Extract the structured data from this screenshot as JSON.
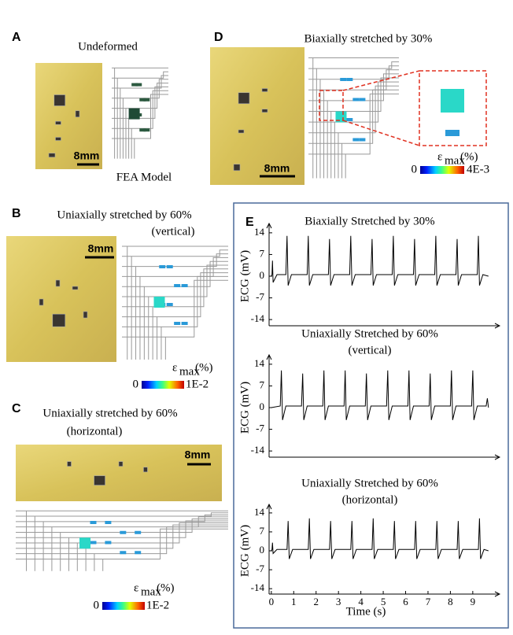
{
  "panels": {
    "A": {
      "label": "A",
      "title": "Undeformed",
      "scale": "8mm",
      "model": "FEA Model"
    },
    "B": {
      "label": "B",
      "title": "Uniaxially stretched by 60%",
      "subtitle": "(vertical)",
      "scale": "8mm",
      "colorbar": {
        "symbol": "ε",
        "subscript": "max",
        "unit": "(%)",
        "min": 0,
        "max": "1E-2"
      }
    },
    "C": {
      "label": "C",
      "title": "Uniaxially stretched by 60%",
      "subtitle": "(horizontal)",
      "scale": "8mm",
      "colorbar": {
        "symbol": "ε",
        "subscript": "max",
        "unit": "(%)",
        "min": 0,
        "max": "1E-2"
      }
    },
    "D": {
      "label": "D",
      "title": "Biaxially stretched by 30%",
      "scale": "8mm",
      "colorbar": {
        "symbol": "ε",
        "subscript": "max",
        "unit": "(%)",
        "min": 0,
        "max": "4E-3"
      }
    },
    "E": {
      "label": "E"
    }
  },
  "chart_data": [
    {
      "type": "line",
      "title": "Biaxially Stretched by 30%",
      "y_label": "ECG (mV)",
      "ylim": [
        -16,
        16
      ],
      "yticks": [
        14,
        7,
        0,
        -7,
        -14
      ],
      "xlim": [
        -0.1,
        10.2
      ],
      "color": "#000000",
      "x": [
        0,
        0.03,
        0.05,
        0.08,
        0.25,
        0.65,
        0.7,
        0.75,
        0.9,
        1.6,
        1.65,
        1.7,
        1.85,
        2.55,
        2.6,
        2.65,
        2.8,
        3.5,
        3.55,
        3.6,
        3.75,
        4.45,
        4.5,
        4.55,
        4.7,
        5.4,
        5.45,
        5.5,
        5.65,
        6.35,
        6.4,
        6.45,
        6.6,
        7.3,
        7.35,
        7.4,
        7.55,
        8.25,
        8.3,
        8.35,
        8.5,
        9.2,
        9.25,
        9.3,
        9.45,
        9.7
      ],
      "values": [
        0,
        0.5,
        5,
        -2,
        0.5,
        0.5,
        13,
        -3,
        0.5,
        0.5,
        13,
        -3,
        0.5,
        0.5,
        12,
        -3,
        0.5,
        0.5,
        13,
        -3,
        0.5,
        0.5,
        12,
        -3,
        0.5,
        0.5,
        13,
        -3,
        0.5,
        0.5,
        12,
        -3,
        0.5,
        0.5,
        13,
        -3,
        0.5,
        0.5,
        12,
        -3,
        0.5,
        0.5,
        13,
        -3,
        0.5,
        0
      ]
    },
    {
      "type": "line",
      "title": "Uniaxially Stretched by 60%",
      "subtitle": "(vertical)",
      "y_label": "ECG (mV)",
      "ylim": [
        -16,
        16
      ],
      "yticks": [
        14,
        7,
        0,
        -7,
        -14
      ],
      "xlim": [
        -0.1,
        10.2
      ],
      "color": "#000000",
      "x": [
        0,
        0.4,
        0.45,
        0.5,
        0.65,
        1.35,
        1.4,
        1.45,
        1.6,
        2.3,
        2.35,
        2.4,
        2.55,
        3.25,
        3.3,
        3.35,
        3.5,
        4.2,
        4.25,
        4.3,
        4.45,
        5.15,
        5.2,
        5.25,
        5.4,
        6.1,
        6.15,
        6.2,
        6.35,
        7.05,
        7.1,
        7.15,
        7.3,
        8.0,
        8.05,
        8.1,
        8.25,
        8.95,
        9.0,
        9.05,
        9.2,
        9.6,
        9.65,
        9.7
      ],
      "values": [
        0,
        0.5,
        12,
        -4,
        0.5,
        0.5,
        11,
        -4,
        0.5,
        0.5,
        12,
        -4,
        0.5,
        0.5,
        12,
        -4,
        0.5,
        0.5,
        11,
        -4,
        0.5,
        0.5,
        12,
        -4,
        0.5,
        0.5,
        12,
        -4,
        0.5,
        0.5,
        11,
        -4,
        0.5,
        0.5,
        12,
        -4,
        0.5,
        0.5,
        12,
        -4,
        0.5,
        0.5,
        3,
        0
      ]
    },
    {
      "type": "line",
      "title": "Uniaxially Stretched by 60%",
      "subtitle": "(horizontal)",
      "y_label": "ECG (mV)",
      "x_label": "Time (s)",
      "ylim": [
        -16,
        16
      ],
      "yticks": [
        14,
        7,
        0,
        -7,
        -14
      ],
      "xlim": [
        -0.1,
        10.2
      ],
      "xticks": [
        0,
        1,
        2,
        3,
        4,
        5,
        6,
        7,
        8,
        9
      ],
      "color": "#000000",
      "x": [
        0,
        0.03,
        0.05,
        0.08,
        0.25,
        0.7,
        0.75,
        0.8,
        0.95,
        1.65,
        1.7,
        1.75,
        1.9,
        2.6,
        2.65,
        2.7,
        2.85,
        3.55,
        3.6,
        3.65,
        3.8,
        4.5,
        4.55,
        4.6,
        4.75,
        5.45,
        5.5,
        5.55,
        5.7,
        6.4,
        6.45,
        6.5,
        6.65,
        7.35,
        7.4,
        7.45,
        7.6,
        8.3,
        8.35,
        8.4,
        8.55,
        9.25,
        9.3,
        9.35,
        9.5,
        9.7
      ],
      "values": [
        0,
        0.5,
        3,
        -1,
        0.5,
        0.5,
        11,
        -3,
        0.5,
        0.5,
        12,
        -3,
        0.5,
        0.5,
        11,
        -3,
        0.5,
        0.5,
        11,
        -3,
        0.5,
        0.5,
        12,
        -3,
        0.5,
        0.5,
        11,
        -3,
        0.5,
        0.5,
        11,
        -3,
        0.5,
        0.5,
        11,
        -3,
        0.5,
        0.5,
        11,
        -3,
        0.5,
        0.5,
        12,
        -3,
        0.5,
        0
      ]
    }
  ]
}
